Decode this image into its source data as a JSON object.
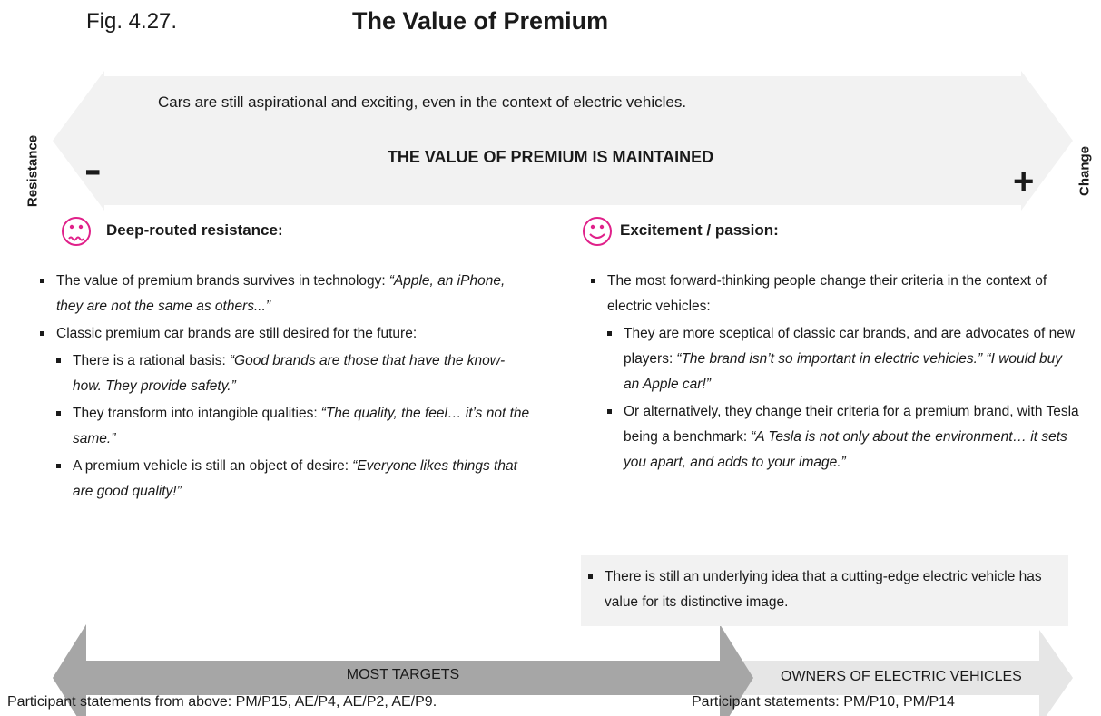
{
  "fig_label": "Fig. 4.27.",
  "title": "The Value of Premium",
  "arrow": {
    "subtitle": "Cars are still aspirational and exciting, even in the context of electric vehicles.",
    "heading": "THE VALUE OF PREMIUM IS MAINTAINED",
    "minus": "-",
    "plus": "+",
    "left_label": "Resistance",
    "right_label": "Change"
  },
  "left": {
    "heading": "Deep-routed resistance:",
    "bullets": [
      {
        "text": "The value of premium brands survives in technology:",
        "quote": "“Apple, an iPhone, they are not the same as others...”"
      },
      {
        "text": "Classic premium car brands are still desired for the future:",
        "children": [
          {
            "text": "There is a rational basis:",
            "quote": "“Good brands are those that have the know-how. They provide safety.”"
          },
          {
            "text": "They transform into intangible qualities:",
            "quote": "“The quality, the feel… it’s not the same.”"
          },
          {
            "text": "A premium vehicle is still an object of desire:",
            "quote": "“Everyone likes things that are good quality!”"
          }
        ]
      }
    ]
  },
  "right": {
    "heading": "Excitement / passion:",
    "bullets": [
      {
        "text": "The most forward-thinking people change their criteria in the context of electric vehicles:",
        "children": [
          {
            "text": "They are more sceptical of classic car brands, and are advocates of new players:",
            "quote": "“The brand isn’t so important in electric vehicles.” “I would buy an Apple car!”"
          },
          {
            "text": "Or alternatively, they change their criteria for a premium brand, with Tesla being a benchmark:",
            "quote": "“A Tesla is not only about the environment… it sets you apart, and adds to your image.”"
          }
        ]
      }
    ],
    "note": "There is still an underlying idea that a cutting-edge electric vehicle has value for its distinctive image."
  },
  "bottom": {
    "left_arrow": "MOST TARGETS",
    "right_arrow": "OWNERS OF ELECTRIC VEHICLES",
    "left_footnote": "Participant statements from above: PM/P15, AE/P4, AE/P2, AE/P9.",
    "right_footnote": "Participant statements: PM/P10, PM/P14"
  }
}
